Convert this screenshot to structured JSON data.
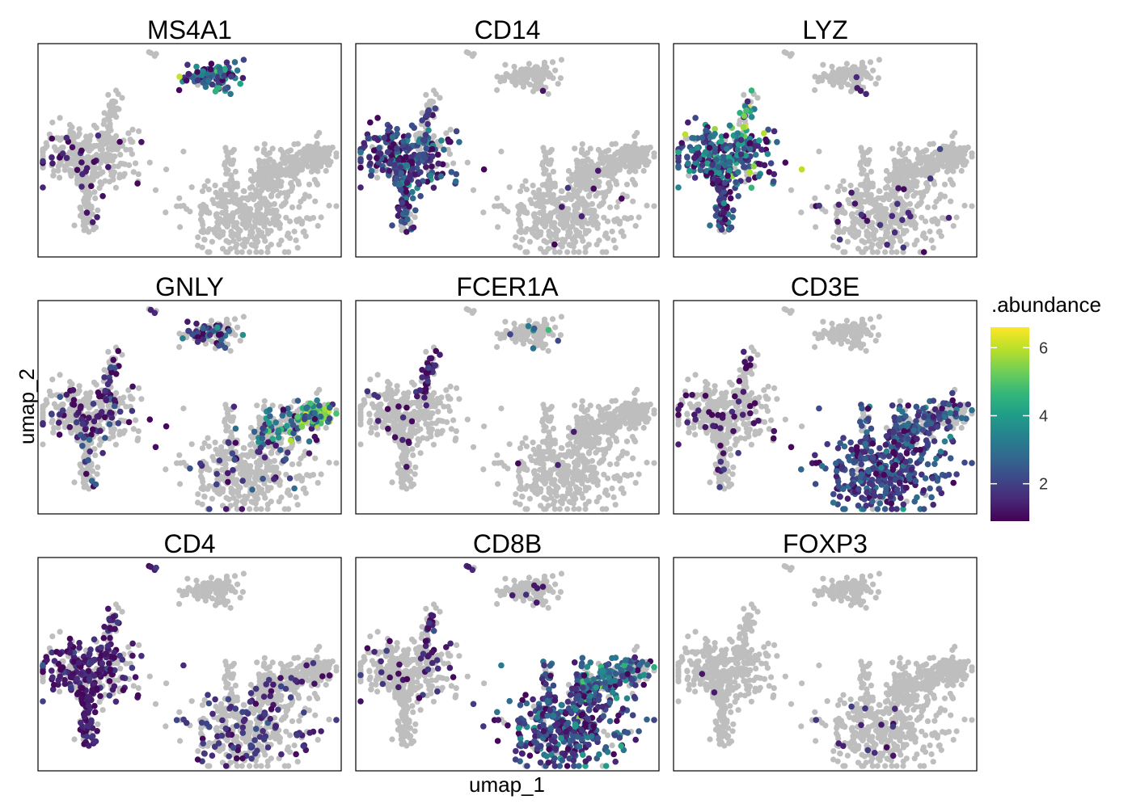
{
  "chart_data": {
    "type": "scatter",
    "facets": [
      "MS4A1",
      "CD14",
      "LYZ",
      "GNLY",
      "FCER1A",
      "CD3E",
      "CD4",
      "CD8B",
      "FOXP3"
    ],
    "xlabel": "umap_1",
    "ylabel": "umap_2",
    "legend": {
      "title": ".abundance",
      "placement": "right",
      "ticks": [
        2,
        4,
        6
      ],
      "tick_labels": [
        "2",
        "4",
        "6"
      ],
      "range": [
        0.9,
        6.6
      ]
    },
    "background_color": "#bebebe",
    "colormap": [
      "#440154",
      "#482878",
      "#3e4989",
      "#31688e",
      "#26828e",
      "#1f9e89",
      "#35b779",
      "#6ece58",
      "#b5de2b",
      "#fde725"
    ],
    "grid": false
  }
}
